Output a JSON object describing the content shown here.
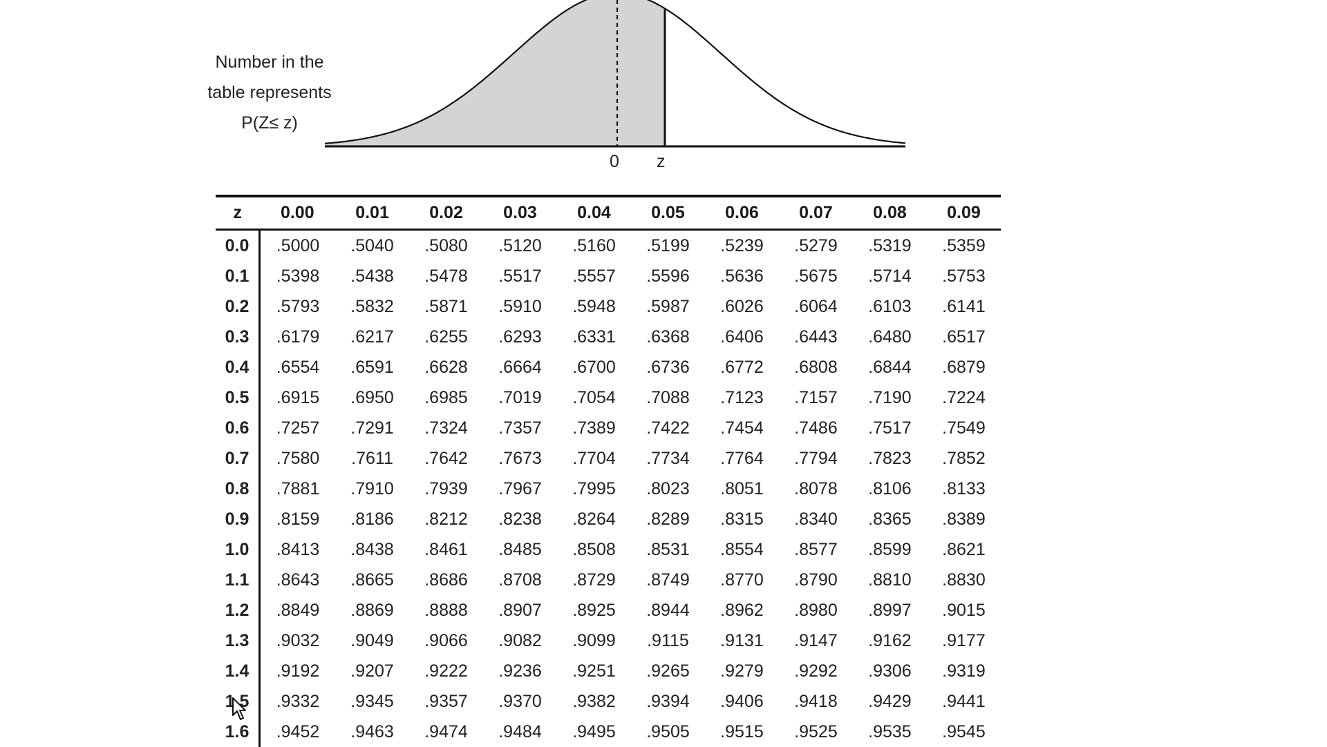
{
  "caption": {
    "line1": "Number in the",
    "line2": "table represents",
    "line3": "P(Z≤ z)"
  },
  "axis": {
    "zero_label": "0",
    "z_label": "z"
  },
  "table": {
    "headers": [
      "z",
      "0.00",
      "0.01",
      "0.02",
      "0.03",
      "0.04",
      "0.05",
      "0.06",
      "0.07",
      "0.08",
      "0.09"
    ],
    "rows": [
      {
        "z": "0.0",
        "values": [
          ".5000",
          ".5040",
          ".5080",
          ".5120",
          ".5160",
          ".5199",
          ".5239",
          ".5279",
          ".5319",
          ".5359"
        ]
      },
      {
        "z": "0.1",
        "values": [
          ".5398",
          ".5438",
          ".5478",
          ".5517",
          ".5557",
          ".5596",
          ".5636",
          ".5675",
          ".5714",
          ".5753"
        ]
      },
      {
        "z": "0.2",
        "values": [
          ".5793",
          ".5832",
          ".5871",
          ".5910",
          ".5948",
          ".5987",
          ".6026",
          ".6064",
          ".6103",
          ".6141"
        ]
      },
      {
        "z": "0.3",
        "values": [
          ".6179",
          ".6217",
          ".6255",
          ".6293",
          ".6331",
          ".6368",
          ".6406",
          ".6443",
          ".6480",
          ".6517"
        ]
      },
      {
        "z": "0.4",
        "values": [
          ".6554",
          ".6591",
          ".6628",
          ".6664",
          ".6700",
          ".6736",
          ".6772",
          ".6808",
          ".6844",
          ".6879"
        ]
      },
      {
        "z": "0.5",
        "values": [
          ".6915",
          ".6950",
          ".6985",
          ".7019",
          ".7054",
          ".7088",
          ".7123",
          ".7157",
          ".7190",
          ".7224"
        ]
      },
      {
        "z": "0.6",
        "values": [
          ".7257",
          ".7291",
          ".7324",
          ".7357",
          ".7389",
          ".7422",
          ".7454",
          ".7486",
          ".7517",
          ".7549"
        ]
      },
      {
        "z": "0.7",
        "values": [
          ".7580",
          ".7611",
          ".7642",
          ".7673",
          ".7704",
          ".7734",
          ".7764",
          ".7794",
          ".7823",
          ".7852"
        ]
      },
      {
        "z": "0.8",
        "values": [
          ".7881",
          ".7910",
          ".7939",
          ".7967",
          ".7995",
          ".8023",
          ".8051",
          ".8078",
          ".8106",
          ".8133"
        ]
      },
      {
        "z": "0.9",
        "values": [
          ".8159",
          ".8186",
          ".8212",
          ".8238",
          ".8264",
          ".8289",
          ".8315",
          ".8340",
          ".8365",
          ".8389"
        ]
      },
      {
        "z": "1.0",
        "values": [
          ".8413",
          ".8438",
          ".8461",
          ".8485",
          ".8508",
          ".8531",
          ".8554",
          ".8577",
          ".8599",
          ".8621"
        ]
      },
      {
        "z": "1.1",
        "values": [
          ".8643",
          ".8665",
          ".8686",
          ".8708",
          ".8729",
          ".8749",
          ".8770",
          ".8790",
          ".8810",
          ".8830"
        ]
      },
      {
        "z": "1.2",
        "values": [
          ".8849",
          ".8869",
          ".8888",
          ".8907",
          ".8925",
          ".8944",
          ".8962",
          ".8980",
          ".8997",
          ".9015"
        ]
      },
      {
        "z": "1.3",
        "values": [
          ".9032",
          ".9049",
          ".9066",
          ".9082",
          ".9099",
          ".9115",
          ".9131",
          ".9147",
          ".9162",
          ".9177"
        ]
      },
      {
        "z": "1.4",
        "values": [
          ".9192",
          ".9207",
          ".9222",
          ".9236",
          ".9251",
          ".9265",
          ".9279",
          ".9292",
          ".9306",
          ".9319"
        ]
      },
      {
        "z": "1.5",
        "values": [
          ".9332",
          ".9345",
          ".9357",
          ".9370",
          ".9382",
          ".9394",
          ".9406",
          ".9418",
          ".9429",
          ".9441"
        ]
      },
      {
        "z": "1.6",
        "values": [
          ".9452",
          ".9463",
          ".9474",
          ".9484",
          ".9495",
          ".9505",
          ".9515",
          ".9525",
          ".9535",
          ".9545"
        ]
      }
    ]
  },
  "colors": {
    "shaded_area": "#d4d4d4",
    "ink": "#111111"
  },
  "icons": {
    "cursor": "mouse-pointer-icon"
  }
}
